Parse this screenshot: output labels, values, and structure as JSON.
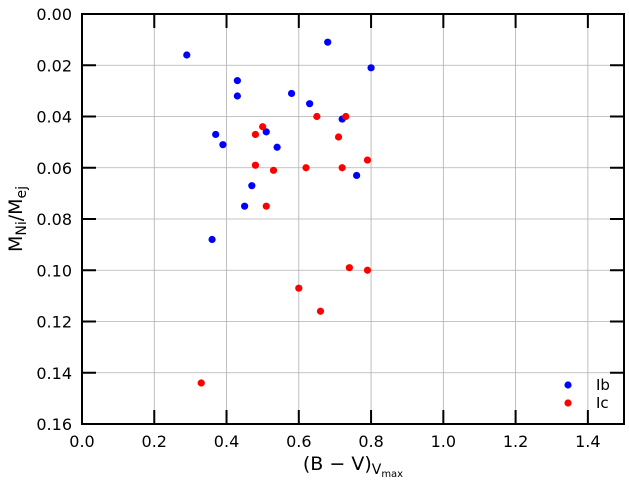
{
  "chart_data": {
    "type": "scatter",
    "title": "",
    "xlabel": "(B − V)",
    "xlabel_sub": "V",
    "xlabel_subsub": "max",
    "ylabel": "M",
    "ylabel_sub1": "Ni",
    "ylabel_sep": "/M",
    "ylabel_sub2": "ej",
    "xlim": [
      0.0,
      1.5
    ],
    "ylim": [
      0.16,
      0.0
    ],
    "y_inverted": true,
    "grid": true,
    "legend_position": "bottom-right",
    "xticks": [
      "0.0",
      "0.2",
      "0.4",
      "0.6",
      "0.8",
      "1.0",
      "1.2",
      "1.4"
    ],
    "yticks": [
      "0.00",
      "0.02",
      "0.04",
      "0.06",
      "0.08",
      "0.10",
      "0.12",
      "0.14",
      "0.16"
    ],
    "series": [
      {
        "name": "Ib",
        "color": "#0000ff",
        "points": [
          [
            0.29,
            0.016
          ],
          [
            0.68,
            0.011
          ],
          [
            0.8,
            0.021
          ],
          [
            0.43,
            0.026
          ],
          [
            0.43,
            0.032
          ],
          [
            0.58,
            0.031
          ],
          [
            0.63,
            0.035
          ],
          [
            0.72,
            0.041
          ],
          [
            0.37,
            0.047
          ],
          [
            0.39,
            0.051
          ],
          [
            0.51,
            0.046
          ],
          [
            0.54,
            0.052
          ],
          [
            0.76,
            0.063
          ],
          [
            0.47,
            0.067
          ],
          [
            0.45,
            0.075
          ],
          [
            0.36,
            0.088
          ]
        ]
      },
      {
        "name": "Ic",
        "color": "#ff0000",
        "points": [
          [
            0.5,
            0.044
          ],
          [
            0.48,
            0.047
          ],
          [
            0.65,
            0.04
          ],
          [
            0.73,
            0.04
          ],
          [
            0.71,
            0.048
          ],
          [
            0.48,
            0.059
          ],
          [
            0.53,
            0.061
          ],
          [
            0.62,
            0.06
          ],
          [
            0.72,
            0.06
          ],
          [
            0.79,
            0.057
          ],
          [
            0.51,
            0.075
          ],
          [
            0.74,
            0.099
          ],
          [
            0.79,
            0.1
          ],
          [
            0.6,
            0.107
          ],
          [
            0.66,
            0.116
          ],
          [
            0.33,
            0.144
          ]
        ]
      }
    ]
  }
}
